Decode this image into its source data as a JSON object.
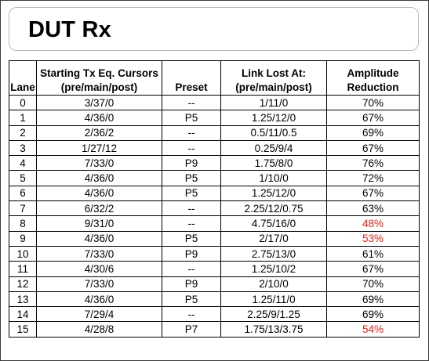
{
  "title": "DUT Rx",
  "table": {
    "headers": {
      "lane": "Lane",
      "starting_line1": "Starting Tx Eq. Cursors",
      "starting_line2": "(pre/main/post)",
      "preset": "Preset",
      "link_line1": "Link Lost At:",
      "link_line2": "(pre/main/post)",
      "amp_line1": "Amplitude",
      "amp_line2": "Reduction"
    },
    "rows": [
      {
        "lane": "0",
        "starting": "3/37/0",
        "preset": "--",
        "link": "1/11/0",
        "amp": "70%",
        "highlight": false
      },
      {
        "lane": "1",
        "starting": "4/36/0",
        "preset": "P5",
        "link": "1.25/12/0",
        "amp": "67%",
        "highlight": false
      },
      {
        "lane": "2",
        "starting": "2/36/2",
        "preset": "--",
        "link": "0.5/11/0.5",
        "amp": "69%",
        "highlight": false
      },
      {
        "lane": "3",
        "starting": "1/27/12",
        "preset": "--",
        "link": "0.25/9/4",
        "amp": "67%",
        "highlight": false
      },
      {
        "lane": "4",
        "starting": "7/33/0",
        "preset": "P9",
        "link": "1.75/8/0",
        "amp": "76%",
        "highlight": false
      },
      {
        "lane": "5",
        "starting": "4/36/0",
        "preset": "P5",
        "link": "1/10/0",
        "amp": "72%",
        "highlight": false
      },
      {
        "lane": "6",
        "starting": "4/36/0",
        "preset": "P5",
        "link": "1.25/12/0",
        "amp": "67%",
        "highlight": false
      },
      {
        "lane": "7",
        "starting": "6/32/2",
        "preset": "--",
        "link": "2.25/12/0.75",
        "amp": "63%",
        "highlight": false
      },
      {
        "lane": "8",
        "starting": "9/31/0",
        "preset": "--",
        "link": "4.75/16/0",
        "amp": "48%",
        "highlight": true
      },
      {
        "lane": "9",
        "starting": "4/36/0",
        "preset": "P5",
        "link": "2/17/0",
        "amp": "53%",
        "highlight": true
      },
      {
        "lane": "10",
        "starting": "7/33/0",
        "preset": "P9",
        "link": "2.75/13/0",
        "amp": "61%",
        "highlight": false
      },
      {
        "lane": "11",
        "starting": "4/30/6",
        "preset": "--",
        "link": "1.25/10/2",
        "amp": "67%",
        "highlight": false
      },
      {
        "lane": "12",
        "starting": "7/33/0",
        "preset": "P9",
        "link": "2/10/0",
        "amp": "70%",
        "highlight": false
      },
      {
        "lane": "13",
        "starting": "4/36/0",
        "preset": "P5",
        "link": "1.25/11/0",
        "amp": "69%",
        "highlight": false
      },
      {
        "lane": "14",
        "starting": "7/29/4",
        "preset": "--",
        "link": "2.25/9/1.25",
        "amp": "69%",
        "highlight": false
      },
      {
        "lane": "15",
        "starting": "4/28/8",
        "preset": "P7",
        "link": "1.75/13/3.75",
        "amp": "54%",
        "highlight": true
      }
    ]
  },
  "colors": {
    "highlight": "#e2231a",
    "border": "#000000",
    "title_box_border": "#b9b9b9"
  }
}
